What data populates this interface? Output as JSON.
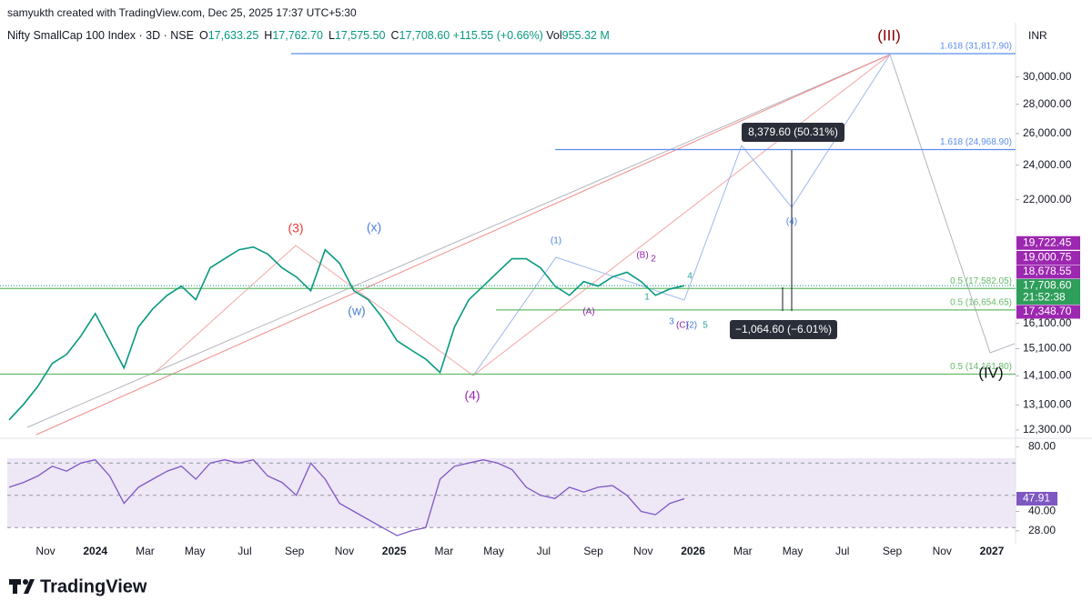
{
  "header": {
    "credit": "samyukth created with TradingView.com, Dec 25, 2025 17:37 UTC+5:30",
    "symbol": "Nifty SmallCap 100 Index · 3D · NSE",
    "ohlc": [
      {
        "k": "O",
        "v": "17,633.25"
      },
      {
        "k": "H",
        "v": "17,762.70"
      },
      {
        "k": "L",
        "v": "17,575.50"
      },
      {
        "k": "C",
        "v": "17,708.60"
      }
    ],
    "change": "+115.55 (+0.66%)",
    "vol_label": "Vol",
    "vol": "955.32 M",
    "currency": "INR"
  },
  "chart_data": [
    {
      "type": "line",
      "log_scale": true,
      "ylim": [
        12100,
        34400
      ],
      "yticks": [
        {
          "value": 12300,
          "label": "12,300.00"
        },
        {
          "value": 13100,
          "label": "13,100.00"
        },
        {
          "value": 14100,
          "label": "14,100.00"
        },
        {
          "value": 15100,
          "label": "15,100.00"
        },
        {
          "value": 16100,
          "label": "16,100.00"
        },
        {
          "value": 22000,
          "label": "22,000.00"
        },
        {
          "value": 24000,
          "label": "24,000.00"
        },
        {
          "value": 26000,
          "label": "26,000.00"
        },
        {
          "value": 28000,
          "label": "28,000.00"
        },
        {
          "value": 30000,
          "label": "30,000.00"
        }
      ],
      "series": [
        {
          "name": "Nifty SmallCap 100 Index",
          "color": "#089981",
          "values": [
            12615,
            13118,
            13732,
            14550,
            14882,
            15590,
            16505,
            15405,
            14380,
            15950,
            16700,
            17280,
            17685,
            17090,
            18520,
            18950,
            19390,
            19520,
            19180,
            18520,
            18100,
            17480,
            19390,
            18740,
            17480,
            17090,
            16320,
            15405,
            15050,
            14710,
            14220,
            15950,
            17090,
            17685,
            18320,
            18950,
            18950,
            18520,
            17685,
            17280,
            17890,
            17685,
            18100,
            18320,
            17890,
            17280,
            17560,
            17708.6
          ]
        }
      ],
      "levels": [
        {
          "value": 31817.9,
          "label": "1.618 (31,817.90)",
          "color": "#5b8def"
        },
        {
          "value": 24968.9,
          "label": "1.618 (24,968.90)",
          "color": "#5b8def"
        },
        {
          "value": 17582.05,
          "label": "0.5 (17,582.05)",
          "color": "#66bb6a"
        },
        {
          "value": 16654.65,
          "label": "0.5 (16,654.65)",
          "color": "#66bb6a"
        },
        {
          "value": 14161.8,
          "label": "0.5 (14,161.80)",
          "color": "#66bb6a"
        }
      ],
      "axis_labels": [
        {
          "value": 19722.45,
          "label": "19,722.45",
          "color": "#9c27b0"
        },
        {
          "value": 19000.75,
          "label": "19,000.75",
          "color": "#9c27b0"
        },
        {
          "value": 18678.55,
          "label": "18,678.55",
          "color": "#9c27b0"
        },
        {
          "value": 17708.6,
          "label": "17,708.60",
          "color": "#2e9e5b",
          "countdown": "21:52:38"
        },
        {
          "value": 17348.7,
          "label": "17,348.70",
          "color": "#9c27b0"
        }
      ],
      "annotations": [
        {
          "text": "(3)",
          "color": "#e53935"
        },
        {
          "text": "(x)",
          "color": "#4a7fd8"
        },
        {
          "text": "(w)",
          "color": "#4a7fd8"
        },
        {
          "text": "(4)",
          "color": "#9c27b0"
        },
        {
          "text": "(1)",
          "color": "#4a7fd8"
        },
        {
          "text": "(B)",
          "color": "#8e24aa"
        },
        {
          "text": "2",
          "color": "#8e24aa"
        },
        {
          "text": "4",
          "color": "#26a69a"
        },
        {
          "text": "1",
          "color": "#26a69a"
        },
        {
          "text": "(A)",
          "color": "#8e24aa"
        },
        {
          "text": "3",
          "color": "#4a7fd8"
        },
        {
          "text": "(C)",
          "color": "#8e24aa"
        },
        {
          "text": "(2)",
          "color": "#4a7fd8"
        },
        {
          "text": "5",
          "color": "#26a69a"
        },
        {
          "text": "(4)",
          "color": "#4a7fd8"
        },
        {
          "text": "(III)",
          "color": "#8b0000"
        },
        {
          "text": "(IV)",
          "color": "#111111"
        }
      ],
      "measures": [
        "8,379.60 (50.31%)",
        "−1,064.60 (−6.01%)"
      ]
    },
    {
      "type": "line",
      "ylim": [
        20,
        82
      ],
      "yticks": [
        {
          "value": 28,
          "label": "28.00"
        },
        {
          "value": 40,
          "label": "40.00"
        },
        {
          "value": 80,
          "label": "80.00"
        }
      ],
      "bands": [
        30,
        50,
        70
      ],
      "series": [
        {
          "name": "RSI",
          "color": "#7e57c2",
          "values": [
            55,
            58,
            62,
            68,
            65,
            70,
            72,
            62,
            45,
            55,
            60,
            65,
            68,
            60,
            70,
            72,
            70,
            72,
            62,
            58,
            50,
            70,
            60,
            45,
            40,
            35,
            30,
            25,
            28,
            30,
            60,
            68,
            70,
            72,
            70,
            66,
            55,
            50,
            48,
            55,
            52,
            55,
            56,
            50,
            40,
            38,
            45,
            47.91
          ]
        }
      ],
      "last_label": "47.91"
    }
  ],
  "time_axis": [
    "Nov",
    "2024",
    "Mar",
    "May",
    "Jul",
    "Sep",
    "Nov",
    "2025",
    "Mar",
    "May",
    "Jul",
    "Sep",
    "Nov",
    "2026",
    "Mar",
    "May",
    "Jul",
    "Sep",
    "Nov",
    "2027"
  ],
  "logo": "TradingView"
}
